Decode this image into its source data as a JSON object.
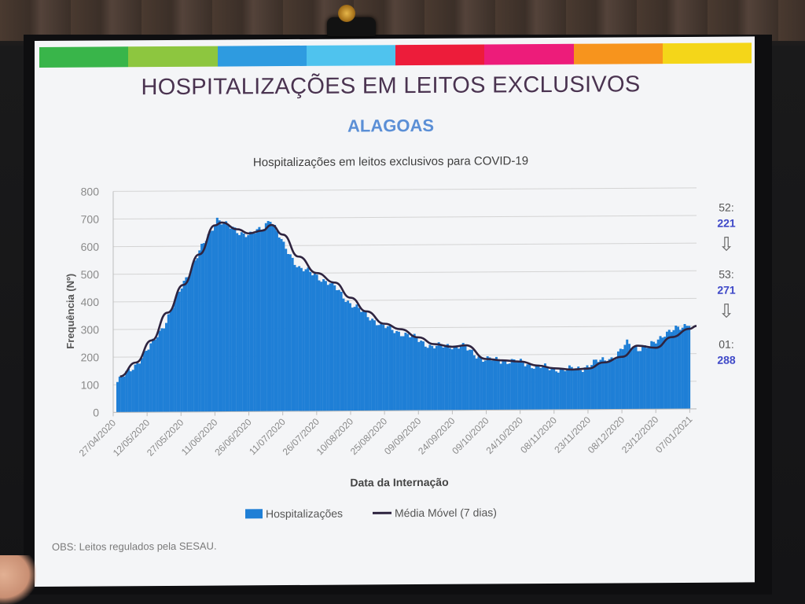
{
  "slide": {
    "title": "HOSPITALIZAÇÕES EM LEITOS EXCLUSIVOS",
    "subtitle": "ALAGOAS",
    "obs": "OBS: Leitos regulados pela SESAU.",
    "stripe_colors": [
      "#39b54a",
      "#8dc63f",
      "#2e9be0",
      "#4fc3ee",
      "#ed1c3a",
      "#ed1c7a",
      "#f7941d",
      "#f4d619"
    ]
  },
  "chart_data": {
    "type": "bar",
    "title": "Hospitalizações em leitos exclusivos para COVID-19",
    "xlabel": "Data da Internação",
    "ylabel": "Frequência (Nº)",
    "ylim": [
      0,
      800
    ],
    "yticks": [
      0,
      100,
      200,
      300,
      400,
      500,
      600,
      700,
      800
    ],
    "xticks": [
      "27/04/2020",
      "12/05/2020",
      "27/05/2020",
      "11/06/2020",
      "26/06/2020",
      "11/07/2020",
      "26/07/2020",
      "10/08/2020",
      "25/08/2020",
      "09/09/2020",
      "24/09/2020",
      "09/10/2020",
      "24/10/2020",
      "08/11/2020",
      "23/11/2020",
      "08/12/2020",
      "23/12/2020",
      "07/01/2021"
    ],
    "start_date": "27/04/2020",
    "end_date": "10/01/2021",
    "grid": true,
    "legend_position": "bottom",
    "bar_color": "#1f7fd6",
    "line_color": "#2e2440",
    "series": [
      {
        "name": "Hospitalizações",
        "kind": "bar",
        "anchors": [
          [
            "27/04/2020",
            110
          ],
          [
            "05/05/2020",
            170
          ],
          [
            "12/05/2020",
            240
          ],
          [
            "19/05/2020",
            330
          ],
          [
            "27/05/2020",
            470
          ],
          [
            "03/06/2020",
            580
          ],
          [
            "08/06/2020",
            650
          ],
          [
            "11/06/2020",
            700
          ],
          [
            "16/06/2020",
            670
          ],
          [
            "21/06/2020",
            650
          ],
          [
            "26/06/2020",
            640
          ],
          [
            "01/07/2020",
            660
          ],
          [
            "05/07/2020",
            700
          ],
          [
            "11/07/2020",
            600
          ],
          [
            "18/07/2020",
            520
          ],
          [
            "26/07/2020",
            490
          ],
          [
            "03/08/2020",
            450
          ],
          [
            "10/08/2020",
            390
          ],
          [
            "17/08/2020",
            350
          ],
          [
            "25/08/2020",
            305
          ],
          [
            "01/09/2020",
            285
          ],
          [
            "09/09/2020",
            260
          ],
          [
            "16/09/2020",
            230
          ],
          [
            "24/09/2020",
            235
          ],
          [
            "30/09/2020",
            230
          ],
          [
            "09/10/2020",
            185
          ],
          [
            "16/10/2020",
            180
          ],
          [
            "24/10/2020",
            175
          ],
          [
            "01/11/2020",
            160
          ],
          [
            "08/11/2020",
            150
          ],
          [
            "16/11/2020",
            145
          ],
          [
            "23/11/2020",
            150
          ],
          [
            "30/11/2020",
            175
          ],
          [
            "08/12/2020",
            190
          ],
          [
            "13/12/2020",
            240
          ],
          [
            "18/12/2020",
            220
          ],
          [
            "23/12/2020",
            225
          ],
          [
            "30/12/2020",
            275
          ],
          [
            "07/01/2021",
            295
          ],
          [
            "10/01/2021",
            315
          ]
        ]
      },
      {
        "name": "Média Móvel (7 dias)",
        "kind": "line",
        "points": [
          [
            "30/04/2020",
            130
          ],
          [
            "07/05/2020",
            180
          ],
          [
            "14/05/2020",
            260
          ],
          [
            "21/05/2020",
            360
          ],
          [
            "28/05/2020",
            460
          ],
          [
            "04/06/2020",
            570
          ],
          [
            "11/06/2020",
            675
          ],
          [
            "14/06/2020",
            685
          ],
          [
            "21/06/2020",
            660
          ],
          [
            "26/06/2020",
            645
          ],
          [
            "02/07/2020",
            655
          ],
          [
            "06/07/2020",
            675
          ],
          [
            "11/07/2020",
            640
          ],
          [
            "18/07/2020",
            560
          ],
          [
            "26/07/2020",
            500
          ],
          [
            "03/08/2020",
            465
          ],
          [
            "10/08/2020",
            410
          ],
          [
            "17/08/2020",
            360
          ],
          [
            "25/08/2020",
            315
          ],
          [
            "01/09/2020",
            295
          ],
          [
            "09/09/2020",
            265
          ],
          [
            "16/09/2020",
            240
          ],
          [
            "24/09/2020",
            230
          ],
          [
            "30/09/2020",
            235
          ],
          [
            "09/10/2020",
            185
          ],
          [
            "16/10/2020",
            180
          ],
          [
            "24/10/2020",
            175
          ],
          [
            "01/11/2020",
            160
          ],
          [
            "08/11/2020",
            150
          ],
          [
            "16/11/2020",
            145
          ],
          [
            "23/11/2020",
            148
          ],
          [
            "30/11/2020",
            170
          ],
          [
            "08/12/2020",
            190
          ],
          [
            "15/12/2020",
            230
          ],
          [
            "23/12/2020",
            222
          ],
          [
            "30/12/2020",
            260
          ],
          [
            "07/01/2021",
            290
          ],
          [
            "10/01/2021",
            300
          ]
        ]
      }
    ]
  },
  "side_notes": [
    {
      "label": "52:",
      "value": "221"
    },
    {
      "label": "53:",
      "value": "271"
    },
    {
      "label": "01:",
      "value": "288"
    }
  ],
  "side_arrow_glyph": "⇩"
}
